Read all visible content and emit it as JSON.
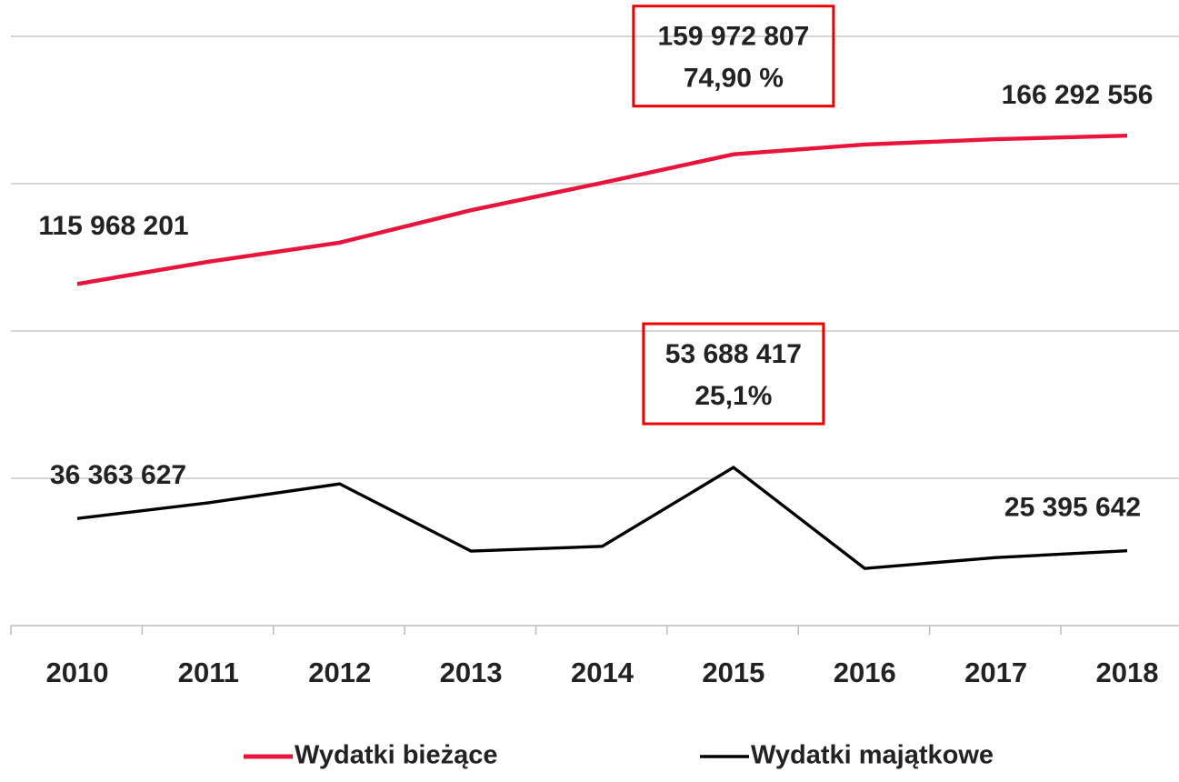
{
  "chart_data": {
    "type": "line",
    "categories": [
      "2010",
      "2011",
      "2012",
      "2013",
      "2014",
      "2015",
      "2016",
      "2017",
      "2018"
    ],
    "series": [
      {
        "name": "Wydatki bieżące",
        "color": "#e8143c",
        "values": [
          115968201,
          123500000,
          130000000,
          141000000,
          150300000,
          159972807,
          163300000,
          165100000,
          166292556
        ],
        "value_labels": [
          "115 968 201",
          null,
          null,
          null,
          null,
          "159 972 807",
          null,
          null,
          "166 292 556"
        ]
      },
      {
        "name": "Wydatki majątkowe",
        "color": "#000000",
        "values": [
          36363627,
          41700000,
          48100000,
          25300000,
          26900000,
          53688417,
          19400000,
          23100000,
          25395642
        ],
        "value_labels": [
          "36 363 627",
          null,
          null,
          null,
          null,
          "53 688 417",
          null,
          null,
          "25 395 642"
        ]
      }
    ],
    "annotations": [
      "74,90 %",
      "25,1%"
    ],
    "ylim": [
      0,
      200000000
    ],
    "yticks": [
      0,
      50000000,
      100000000,
      150000000,
      200000000
    ],
    "grid": true
  }
}
